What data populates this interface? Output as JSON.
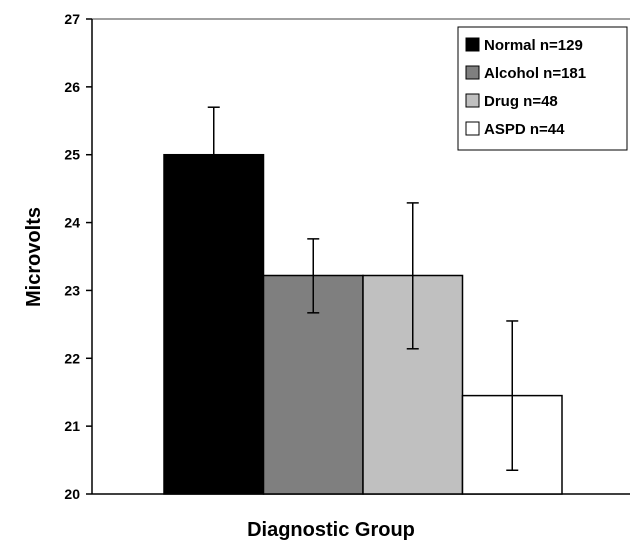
{
  "chart_data": {
    "type": "bar",
    "title": "",
    "xlabel": "Diagnostic Group",
    "ylabel": "Microvolts",
    "ylim": [
      20,
      27
    ],
    "yticks": [
      20,
      21,
      22,
      23,
      24,
      25,
      26,
      27
    ],
    "grid": false,
    "legend_position": "top-right",
    "series": [
      {
        "name": "Normal n=129",
        "value": 25.0,
        "error_low": 24.0,
        "error_high": 25.7,
        "color": "#000000"
      },
      {
        "name": "Alcohol n=181",
        "value": 23.22,
        "error_low": 22.67,
        "error_high": 23.76,
        "color": "#7f7f7f"
      },
      {
        "name": "Drug n=48",
        "value": 23.22,
        "error_low": 22.14,
        "error_high": 24.29,
        "color": "#c0c0c0"
      },
      {
        "name": "ASPD n=44",
        "value": 21.45,
        "error_low": 20.35,
        "error_high": 22.55,
        "color": "#ffffff"
      }
    ]
  }
}
